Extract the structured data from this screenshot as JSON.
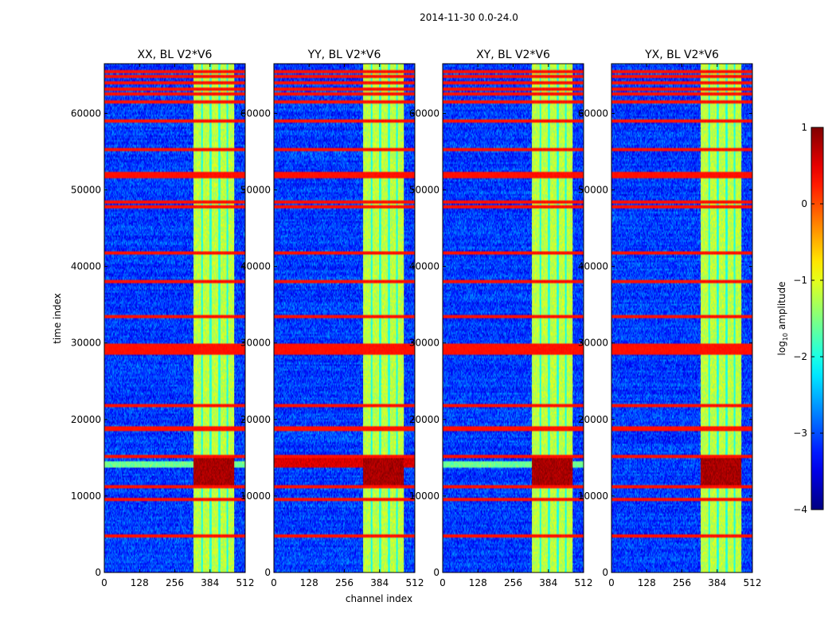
{
  "figure_title": "2014-11-30 0.0-24.0",
  "chart_data": {
    "type": "heatmap",
    "suptitle": "2014-11-30 0.0-24.0",
    "xlabel": "channel index",
    "ylabel": "time index",
    "xlim": [
      0,
      512
    ],
    "ylim": [
      0,
      66500
    ],
    "xticks": [
      0,
      128,
      256,
      384,
      512
    ],
    "yticks": [
      0,
      10000,
      20000,
      30000,
      40000,
      50000,
      60000
    ],
    "colorbar": {
      "label": "log10 amplitude",
      "label_base": "log",
      "label_sub": "10",
      "label_rest": " amplitude",
      "min": -4,
      "max": 1,
      "ticks": [
        -4,
        -3,
        -2,
        -1,
        0,
        1
      ],
      "tick_labels": [
        "−4",
        "−3",
        "−2",
        "−1",
        "0",
        "1"
      ],
      "colormap": "jet"
    },
    "panels": [
      {
        "title": "XX, BL V2*V6",
        "pol": "XX",
        "baseline": "V2*V6"
      },
      {
        "title": "YY, BL V2*V6",
        "pol": "YY",
        "baseline": "V2*V6"
      },
      {
        "title": "XY, BL V2*V6",
        "pol": "XY",
        "baseline": "V2*V6"
      },
      {
        "title": "YX, BL V2*V6",
        "pol": "YX",
        "baseline": "V2*V6"
      }
    ],
    "features": {
      "background_level": -3.1,
      "band_channel_range": [
        325,
        472
      ],
      "band_level": -1.2,
      "band_gap_channels": [
        355,
        386,
        418,
        447
      ],
      "flagged_rows": [
        4700,
        9500,
        11200,
        15200,
        18800,
        21800,
        28800,
        29200,
        29700,
        33500,
        38000,
        41800,
        47800,
        48500,
        51800,
        52200,
        55300,
        59000,
        61500,
        62500,
        63200,
        64000,
        64800,
        65500
      ],
      "flagged_level": 0.3,
      "rfi_time_range": [
        11500,
        15200
      ],
      "rfi_level": 0.8
    }
  }
}
